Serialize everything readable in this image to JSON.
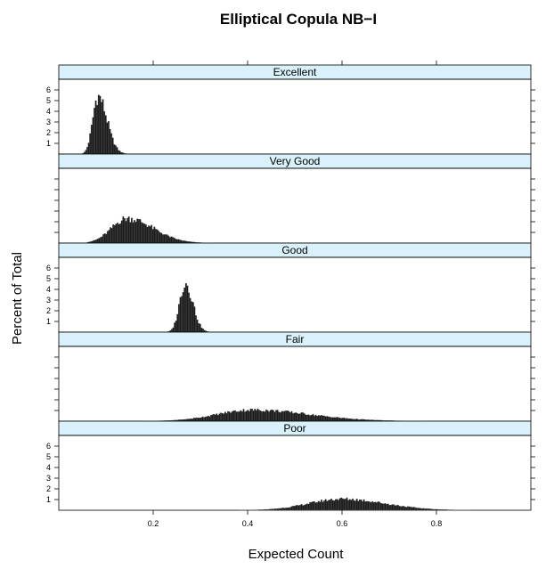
{
  "chart_data": {
    "type": "bar",
    "title": "Elliptical Copula NB−I",
    "xlabel": "Expected Count",
    "ylabel": "Percent of Total",
    "xlim": [
      0,
      1
    ],
    "ylim": [
      0,
      7
    ],
    "x_ticks": [
      "0.2",
      "0.4",
      "0.6",
      "0.8"
    ],
    "x_tick_values": [
      0.2,
      0.4,
      0.6,
      0.8
    ],
    "y_ticks": [
      "1",
      "2",
      "3",
      "4",
      "5",
      "6"
    ],
    "y_tick_values": [
      1,
      2,
      3,
      4,
      5,
      6
    ],
    "bin_width": 0.003,
    "strip_color": "#d9f1fb",
    "bar_color": "#1a1a1a",
    "panels": [
      {
        "name": "Excellent",
        "peak_x": 0.083,
        "peak_pct": 5.4,
        "sd_left": 0.011,
        "sd_right": 0.019,
        "x_min": 0.05,
        "x_max": 0.16,
        "y_axis_labels": "left"
      },
      {
        "name": "Very Good",
        "peak_x": 0.145,
        "peak_pct": 2.3,
        "sd_left": 0.033,
        "sd_right": 0.055,
        "x_min": 0.06,
        "x_max": 0.33,
        "y_axis_labels": "none"
      },
      {
        "name": "Good",
        "peak_x": 0.268,
        "peak_pct": 4.6,
        "sd_left": 0.012,
        "sd_right": 0.016,
        "x_min": 0.22,
        "x_max": 0.33,
        "y_axis_labels": "left"
      },
      {
        "name": "Fair",
        "peak_x": 0.41,
        "peak_pct": 1.05,
        "sd_left": 0.075,
        "sd_right": 0.12,
        "x_min": 0.15,
        "x_max": 0.85,
        "y_axis_labels": "none"
      },
      {
        "name": "Poor",
        "peak_x": 0.6,
        "peak_pct": 1.05,
        "sd_left": 0.07,
        "sd_right": 0.09,
        "x_min": 0.3,
        "x_max": 0.95,
        "y_axis_labels": "left"
      }
    ]
  }
}
